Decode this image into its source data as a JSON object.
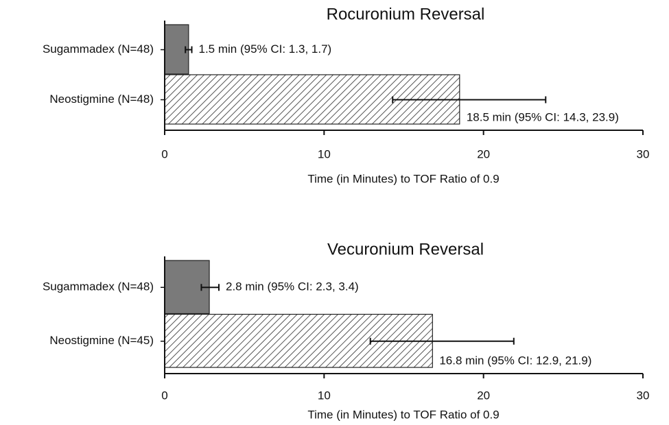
{
  "chart_data": [
    {
      "type": "bar",
      "orientation": "horizontal",
      "title": "Rocuronium Reversal",
      "categories": [
        "Sugammadex (N=48)",
        "Neostigmine (N=48)"
      ],
      "values": [
        1.5,
        18.5
      ],
      "value_labels": [
        "1.5 min (95% CI: 1.3, 1.7)",
        "18.5 min (95% CI: 14.3, 23.9)"
      ],
      "ci_low": [
        1.3,
        14.3
      ],
      "ci_high": [
        1.7,
        23.9
      ],
      "fills": [
        "#7a7a7a",
        "hatch"
      ],
      "xlabel": "Time (in Minutes) to TOF Ratio of 0.9",
      "xlim": [
        0,
        30
      ],
      "xticks": [
        0,
        10,
        20,
        30
      ]
    },
    {
      "type": "bar",
      "orientation": "horizontal",
      "title": "Vecuronium Reversal",
      "categories": [
        "Sugammadex (N=48)",
        "Neostigmine (N=45)"
      ],
      "values": [
        2.8,
        16.8
      ],
      "value_labels": [
        "2.8 min (95% CI: 2.3, 3.4)",
        "16.8 min (95% CI: 12.9, 21.9)"
      ],
      "ci_low": [
        2.3,
        12.9
      ],
      "ci_high": [
        3.4,
        21.9
      ],
      "fills": [
        "#7a7a7a",
        "hatch"
      ],
      "xlabel": "Time (in Minutes) to TOF Ratio of 0.9",
      "xlim": [
        0,
        30
      ],
      "xticks": [
        0,
        10,
        20,
        30
      ]
    }
  ]
}
